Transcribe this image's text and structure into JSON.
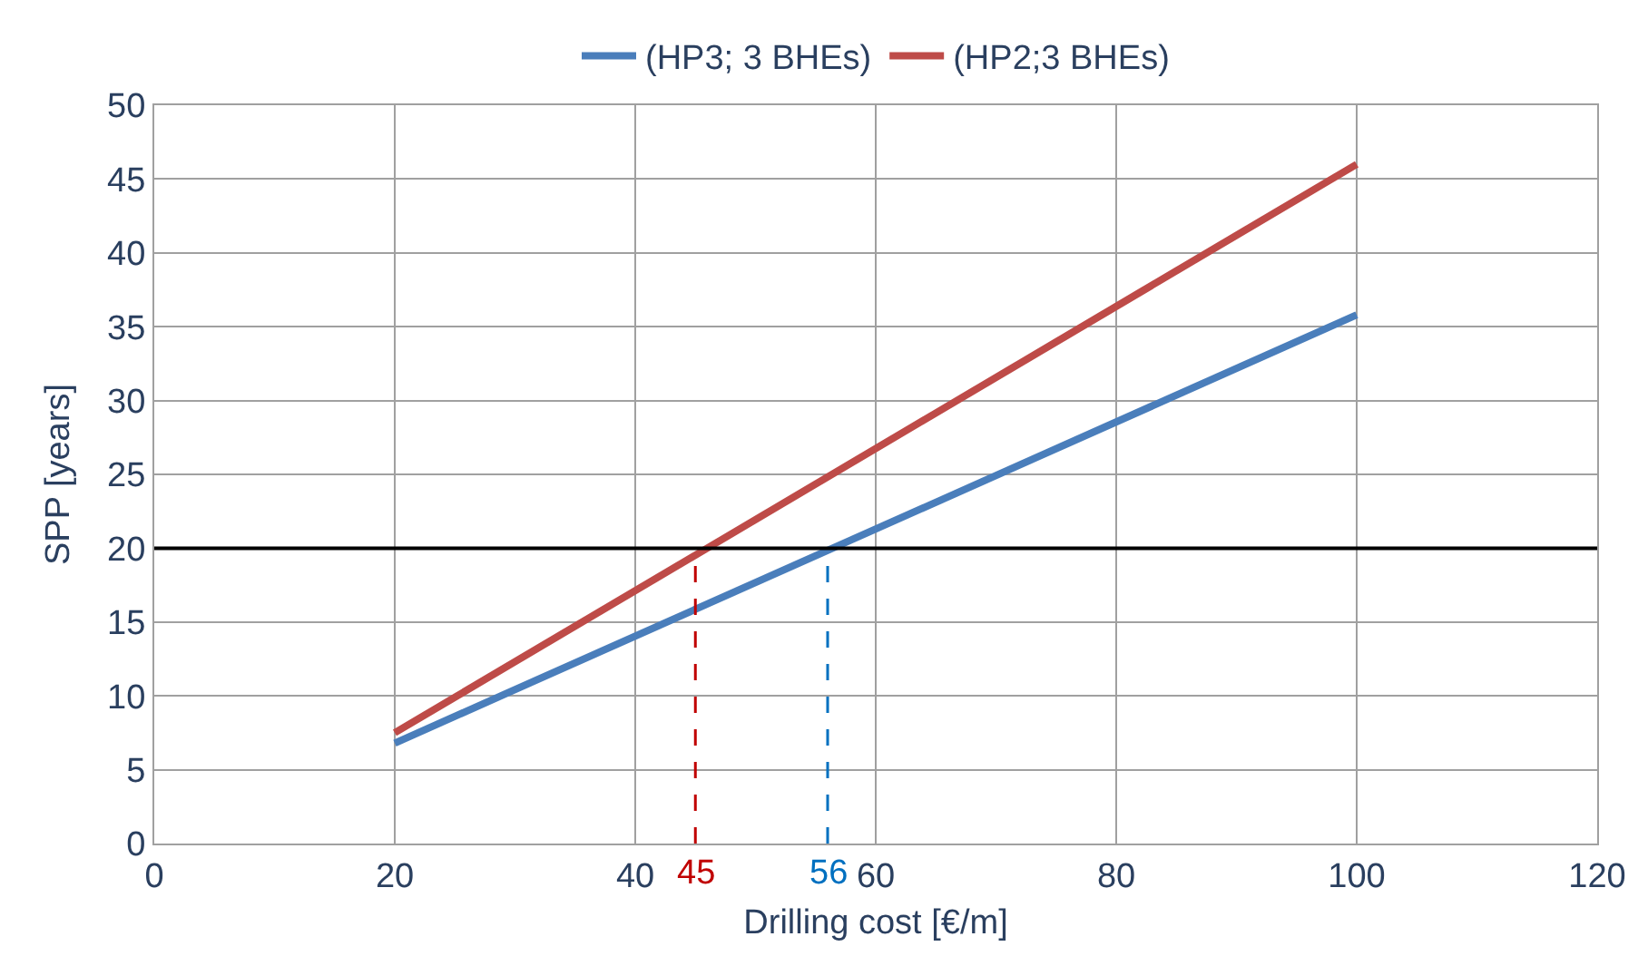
{
  "chart_data": {
    "type": "line",
    "xlabel": "Drilling cost [€/m]",
    "ylabel": "SPP [years]",
    "xlim": [
      0,
      120
    ],
    "xticks": [
      0,
      20,
      40,
      60,
      80,
      100,
      120
    ],
    "ylim": [
      0,
      50
    ],
    "yticks": [
      0,
      5,
      10,
      15,
      20,
      25,
      30,
      35,
      40,
      45,
      50
    ],
    "grid": true,
    "legend": "top",
    "marker": "none",
    "line_style": "solid",
    "series": [
      {
        "name": "(HP3; 3 BHEs)",
        "color": "#4a7ebb",
        "x": [
          20,
          100
        ],
        "values": [
          6.8,
          35.8
        ]
      },
      {
        "name": "(HP2;3 BHEs)",
        "color": "#be4b48",
        "x": [
          20,
          100
        ],
        "values": [
          7.5,
          46
        ]
      },
      {
        "color": "#c00000",
        "x": [
          45,
          45
        ],
        "values": [
          0,
          20
        ],
        "line_style": "dashed"
      },
      {
        "color": "#0070c0",
        "x": [
          56,
          56
        ],
        "values": [
          0,
          20
        ],
        "line_style": "dashed"
      }
    ],
    "ref_lines": [
      {
        "axis": "y",
        "value": 20,
        "color": "#000000"
      }
    ],
    "annotations": [
      {
        "text": "45",
        "x": 45,
        "y": 0
      },
      {
        "text": "56",
        "x": 56,
        "y": 0
      }
    ]
  }
}
